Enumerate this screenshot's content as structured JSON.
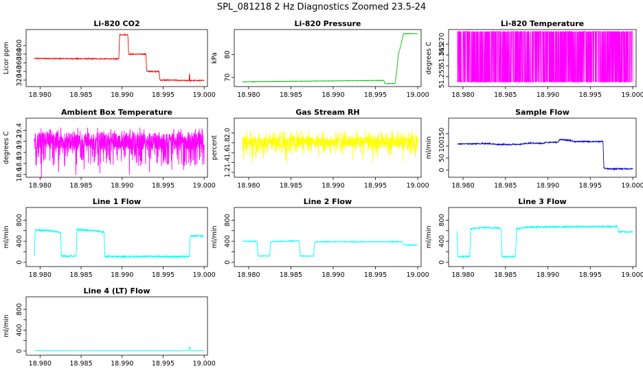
{
  "title": "SPL_081218  2 Hz Diagnostics Zoomed 23.5-24",
  "chart_data": [
    {
      "type": "line",
      "title": "Li-820 CO2",
      "ylabel": "Licor ppm",
      "color": "#ff0000",
      "xlim": [
        18.9783,
        19.0004
      ],
      "ylim": [
        305,
        437
      ],
      "x_ticks": [
        "18.980",
        "18.985",
        "18.990",
        "18.995",
        "19.000"
      ],
      "y_ticks": [
        "320",
        "340",
        "360",
        "380",
        "400"
      ],
      "noise": 1.2,
      "series": [
        {
          "x": [
            18.9793,
            18.9896,
            18.9897,
            18.9907,
            18.9908,
            18.9929,
            18.993,
            18.9945,
            18.9946,
            18.9966,
            18.9967,
            19.0
          ],
          "y": [
            370,
            369,
            425,
            425,
            380,
            380,
            340,
            340,
            320,
            320,
            319,
            319
          ]
        }
      ],
      "spikes": [
        {
          "x": 18.9982,
          "y": 334
        }
      ]
    },
    {
      "type": "line",
      "title": "Li-820 Pressure",
      "ylabel": "kPa",
      "color": "#00bb00",
      "xlim": [
        18.9783,
        19.0004
      ],
      "ylim": [
        66,
        91
      ],
      "x_ticks": [
        "18.980",
        "18.985",
        "18.990",
        "18.995",
        "19.000"
      ],
      "y_ticks": [
        "70",
        "80"
      ],
      "noise": 0.1,
      "series": [
        {
          "x": [
            18.9793,
            18.996,
            18.9961,
            18.9973,
            18.9975,
            18.9977,
            18.998,
            18.9983,
            18.9985,
            19.0
          ],
          "y": [
            68.1,
            68.7,
            67.3,
            67.3,
            72.0,
            80.0,
            84.0,
            89.0,
            89.2,
            89.2
          ]
        }
      ]
    },
    {
      "type": "line",
      "title": "Li-820 Temperature",
      "ylabel": "degrees C",
      "color": "#ff00ff",
      "xlim": [
        18.9783,
        19.0004
      ],
      "ylim": [
        51.2505,
        51.2767
      ],
      "x_ticks": [
        "18.980",
        "18.985",
        "18.990",
        "18.995",
        "19.000"
      ],
      "y_ticks": [
        "51.255",
        "51.260",
        "51.265",
        "51.270"
      ],
      "y_tick_labels_shown": [
        "51.255",
        "",
        "51.265",
        "51.270"
      ],
      "toggle_levels": [
        51.2526,
        51.2758
      ],
      "x_range": [
        18.9793,
        19.0
      ]
    },
    {
      "type": "line",
      "title": "Ambient Box Temperature",
      "ylabel": "degrees C",
      "color": "#ff00ff",
      "xlim": [
        18.9783,
        19.0004
      ],
      "ylim": [
        18.55,
        19.62
      ],
      "x_ticks": [
        "18.980",
        "18.985",
        "18.990",
        "18.995",
        "19.000"
      ],
      "y_ticks": [
        "18.6",
        "18.8",
        "19.0",
        "19.2",
        "19.4"
      ],
      "noise_band": [
        18.75,
        19.45
      ],
      "center": 19.2,
      "x_range": [
        18.9793,
        19.0
      ]
    },
    {
      "type": "line",
      "title": "Gas Stream RH",
      "ylabel": "percent",
      "color": "#ffff00",
      "xlim": [
        18.9783,
        19.0004
      ],
      "ylim": [
        1.1,
        2.3
      ],
      "x_ticks": [
        "18.980",
        "18.985",
        "18.990",
        "18.995",
        "19.000"
      ],
      "y_ticks": [
        "1.2",
        "1.4",
        "1.6",
        "1.8",
        "2.0"
      ],
      "noise_band": [
        1.55,
        2.05
      ],
      "center": 1.82,
      "x_range": [
        18.9793,
        19.0
      ]
    },
    {
      "type": "line",
      "title": "Sample Flow",
      "ylabel": "ml/min",
      "color": "#0000cc",
      "xlim": [
        18.9783,
        19.0004
      ],
      "ylim": [
        -30,
        215
      ],
      "x_ticks": [
        "18.980",
        "18.985",
        "18.990",
        "18.995",
        "19.000"
      ],
      "y_ticks": [
        "0",
        "50",
        "100",
        "150"
      ],
      "noise": 2.5,
      "series": [
        {
          "x": [
            18.9793,
            18.983,
            18.984,
            18.9865,
            18.988,
            18.9895,
            18.9897,
            18.9912,
            18.9914,
            18.9928,
            18.993,
            18.9965,
            18.9966,
            18.997,
            19.0
          ],
          "y": [
            108,
            110,
            106,
            106,
            112,
            110,
            115,
            115,
            127,
            122,
            118,
            118,
            8,
            5,
            5
          ]
        }
      ]
    },
    {
      "type": "line",
      "title": "Line 1 Flow",
      "ylabel": "ml/min",
      "color": "#00ffff",
      "xlim": [
        18.9783,
        19.0004
      ],
      "ylim": [
        -80,
        1040
      ],
      "x_ticks": [
        "18.980",
        "18.985",
        "18.990",
        "18.995",
        "19.000"
      ],
      "y_ticks": [
        "0",
        "400",
        "800"
      ],
      "y_ticks_minor": [
        "200",
        "600"
      ],
      "noise": 18,
      "series": [
        {
          "x": [
            18.9793,
            18.9794,
            18.9815,
            18.9825,
            18.9826,
            18.9844,
            18.9845,
            18.9852,
            18.9867,
            18.9878,
            18.9879,
            18.9982,
            18.9983,
            19.0
          ],
          "y": [
            130,
            610,
            600,
            560,
            120,
            120,
            630,
            610,
            600,
            570,
            110,
            110,
            500,
            500
          ]
        }
      ]
    },
    {
      "type": "line",
      "title": "Line 2 Flow",
      "ylabel": "ml/min",
      "color": "#00ffff",
      "xlim": [
        18.9783,
        19.0004
      ],
      "ylim": [
        -80,
        1040
      ],
      "x_ticks": [
        "18.980",
        "18.985",
        "18.990",
        "18.995",
        "19.000"
      ],
      "y_ticks": [
        "0",
        "400",
        "800"
      ],
      "y_ticks_minor": [
        "200",
        "600"
      ],
      "noise": 8,
      "series": [
        {
          "x": [
            18.9793,
            18.981,
            18.9811,
            18.9825,
            18.9826,
            18.986,
            18.9861,
            18.9877,
            18.9878,
            18.9982,
            18.9983,
            19.0
          ],
          "y": [
            400,
            400,
            120,
            120,
            390,
            410,
            120,
            120,
            390,
            390,
            330,
            330
          ]
        }
      ]
    },
    {
      "type": "line",
      "title": "Line 3 Flow",
      "ylabel": "ml/min",
      "color": "#00ffff",
      "xlim": [
        18.9783,
        19.0004
      ],
      "ylim": [
        -80,
        1040
      ],
      "x_ticks": [
        "18.980",
        "18.985",
        "18.990",
        "18.995",
        "19.000"
      ],
      "y_ticks": [
        "0",
        "400",
        "800"
      ],
      "y_ticks_minor": [
        "200",
        "600"
      ],
      "noise": 15,
      "series": [
        {
          "x": [
            18.9793,
            18.9794,
            18.9808,
            18.9809,
            18.9825,
            18.9845,
            18.9846,
            18.9862,
            18.9863,
            18.988,
            18.9982,
            18.9983,
            19.0
          ],
          "y": [
            600,
            110,
            110,
            640,
            660,
            650,
            110,
            110,
            640,
            670,
            680,
            580,
            580
          ]
        }
      ]
    },
    {
      "type": "line",
      "title": "Line 4 (LT) Flow",
      "ylabel": "ml/min",
      "color": "#00ffff",
      "xlim": [
        18.9783,
        19.0004
      ],
      "ylim": [
        -80,
        1040
      ],
      "x_ticks": [
        "18.980",
        "18.985",
        "18.990",
        "18.995",
        "19.000"
      ],
      "y_ticks": [
        "0",
        "400",
        "800"
      ],
      "y_ticks_minor": [
        "200",
        "600"
      ],
      "noise": 2,
      "series": [
        {
          "x": [
            18.9793,
            18.9981,
            18.9982,
            18.9983,
            18.9984,
            19.0
          ],
          "y": [
            5,
            5,
            80,
            30,
            5,
            5
          ]
        }
      ]
    }
  ]
}
